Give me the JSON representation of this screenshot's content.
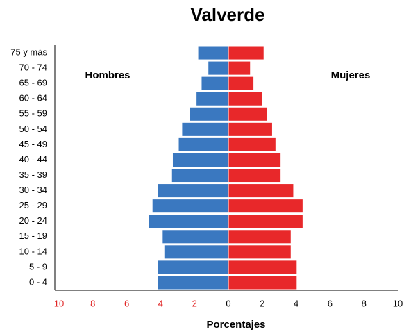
{
  "chart_data": {
    "type": "pyramid",
    "title": "Valverde",
    "xlabel": "Porcentajes",
    "categories": [
      "75 y más",
      "70 - 74",
      "65 - 69",
      "60 - 64",
      "55 - 59",
      "50 - 54",
      "45 - 49",
      "40 - 44",
      "35 - 39",
      "30 - 34",
      "25 - 29",
      "20 - 24",
      "15 - 19",
      "10 - 14",
      "5 - 9",
      "0 - 4"
    ],
    "series": [
      {
        "name": "Hombres",
        "color": "#3a78c0",
        "values": [
          1.8,
          1.2,
          1.6,
          1.9,
          2.3,
          2.75,
          2.95,
          3.3,
          3.35,
          4.2,
          4.5,
          4.7,
          3.9,
          3.8,
          4.2,
          4.2
        ]
      },
      {
        "name": "Mujeres",
        "color": "#e8282a",
        "values": [
          2.1,
          1.3,
          1.5,
          2.0,
          2.3,
          2.6,
          2.8,
          3.1,
          3.1,
          3.85,
          4.4,
          4.4,
          3.7,
          3.7,
          4.05,
          4.05
        ]
      }
    ],
    "xlim": [
      -10,
      10
    ],
    "xticks": [
      {
        "value": -10,
        "label": "10"
      },
      {
        "value": -8,
        "label": "8"
      },
      {
        "value": -6,
        "label": "6"
      },
      {
        "value": -4,
        "label": "4"
      },
      {
        "value": -2,
        "label": "2"
      },
      0,
      2,
      4,
      6,
      8,
      10
    ],
    "negative_tick_color": "#e02020"
  }
}
